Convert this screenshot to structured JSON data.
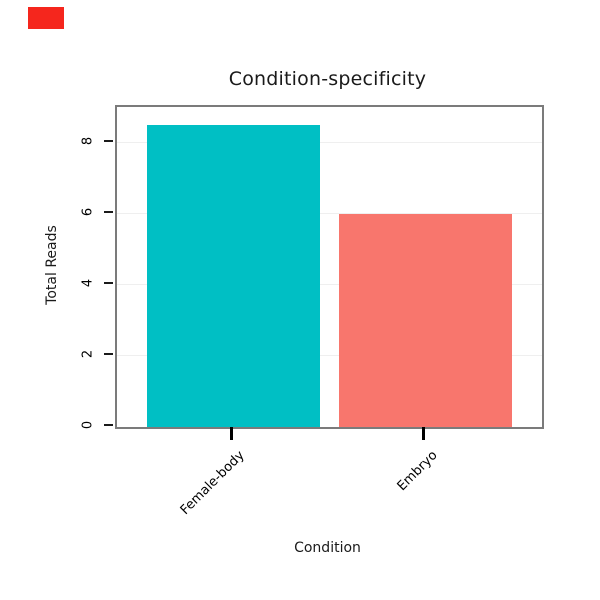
{
  "decorations": {
    "corner_swatch_color": "#F5261D"
  },
  "chart_data": {
    "type": "bar",
    "title": "Condition-specificity",
    "xlabel": "Condition",
    "ylabel": "Total Reads",
    "categories": [
      "Female-body",
      "Embryo"
    ],
    "values": [
      8.5,
      6.0
    ],
    "bar_colors": [
      "#00BFC4",
      "#F8766D"
    ],
    "ylim": [
      0,
      9
    ],
    "yticks": [
      0,
      2,
      4,
      6,
      8
    ],
    "grid": "major-horizontal-faint",
    "legend": "none"
  }
}
